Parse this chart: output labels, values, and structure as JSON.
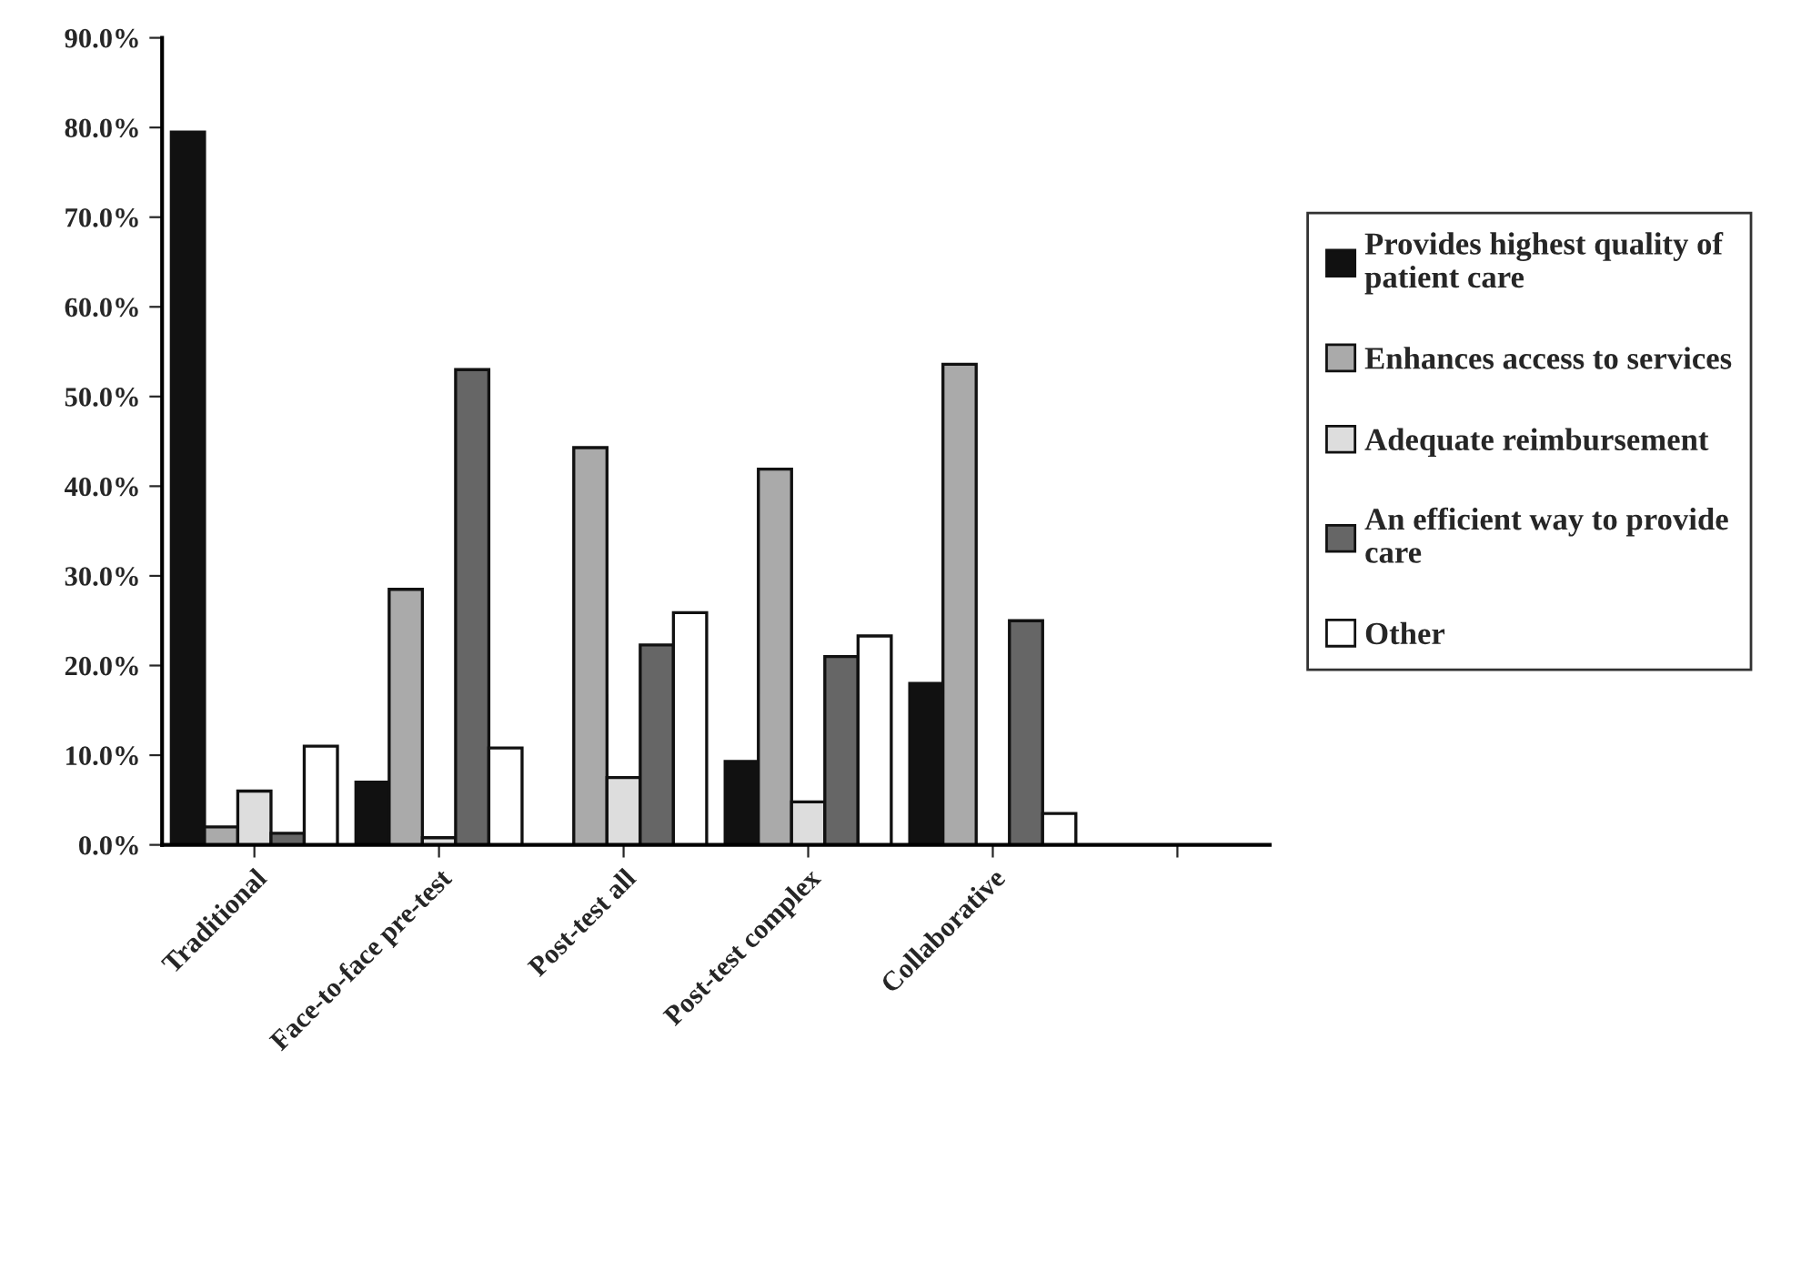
{
  "chart_data": {
    "type": "bar",
    "categories": [
      "Traditional",
      "Face-to-face pre-test",
      "Post-test all",
      "Post-test complex",
      "Collaborative",
      null
    ],
    "series": [
      {
        "name": "Provides highest quality of\npatient care",
        "color": "#111111",
        "values": [
          79.5,
          7.0,
          null,
          9.3,
          18.0,
          null
        ]
      },
      {
        "name": "Enhances access to services",
        "color": "#aaaaaa",
        "values": [
          2.0,
          28.5,
          44.3,
          41.9,
          53.6,
          null
        ]
      },
      {
        "name": "Adequate reimbursement",
        "color": "#dddddd",
        "values": [
          6.0,
          0.8,
          7.5,
          4.8,
          null,
          null
        ]
      },
      {
        "name": "An efficient way to provide\ncare",
        "color": "#666666",
        "values": [
          1.3,
          53.0,
          22.3,
          21.0,
          25.0,
          null
        ]
      },
      {
        "name": "Other",
        "color": "#ffffff",
        "values": [
          11.0,
          10.8,
          25.9,
          23.3,
          3.5,
          null
        ]
      }
    ],
    "ylim": [
      0,
      90
    ],
    "yticks": [
      {
        "value": 0,
        "label": "0.0%"
      },
      {
        "value": 10,
        "label": "10.0%"
      },
      {
        "value": 20,
        "label": "20.0%"
      },
      {
        "value": 30,
        "label": "30.0%"
      },
      {
        "value": 40,
        "label": "40.0%"
      },
      {
        "value": 50,
        "label": "50.0%"
      },
      {
        "value": 60,
        "label": "60.0%"
      },
      {
        "value": 70,
        "label": "70.0%"
      },
      {
        "value": 80,
        "label": "80.0%"
      },
      {
        "value": 90,
        "label": "90.0%"
      }
    ],
    "legend": "right",
    "grid": false
  }
}
